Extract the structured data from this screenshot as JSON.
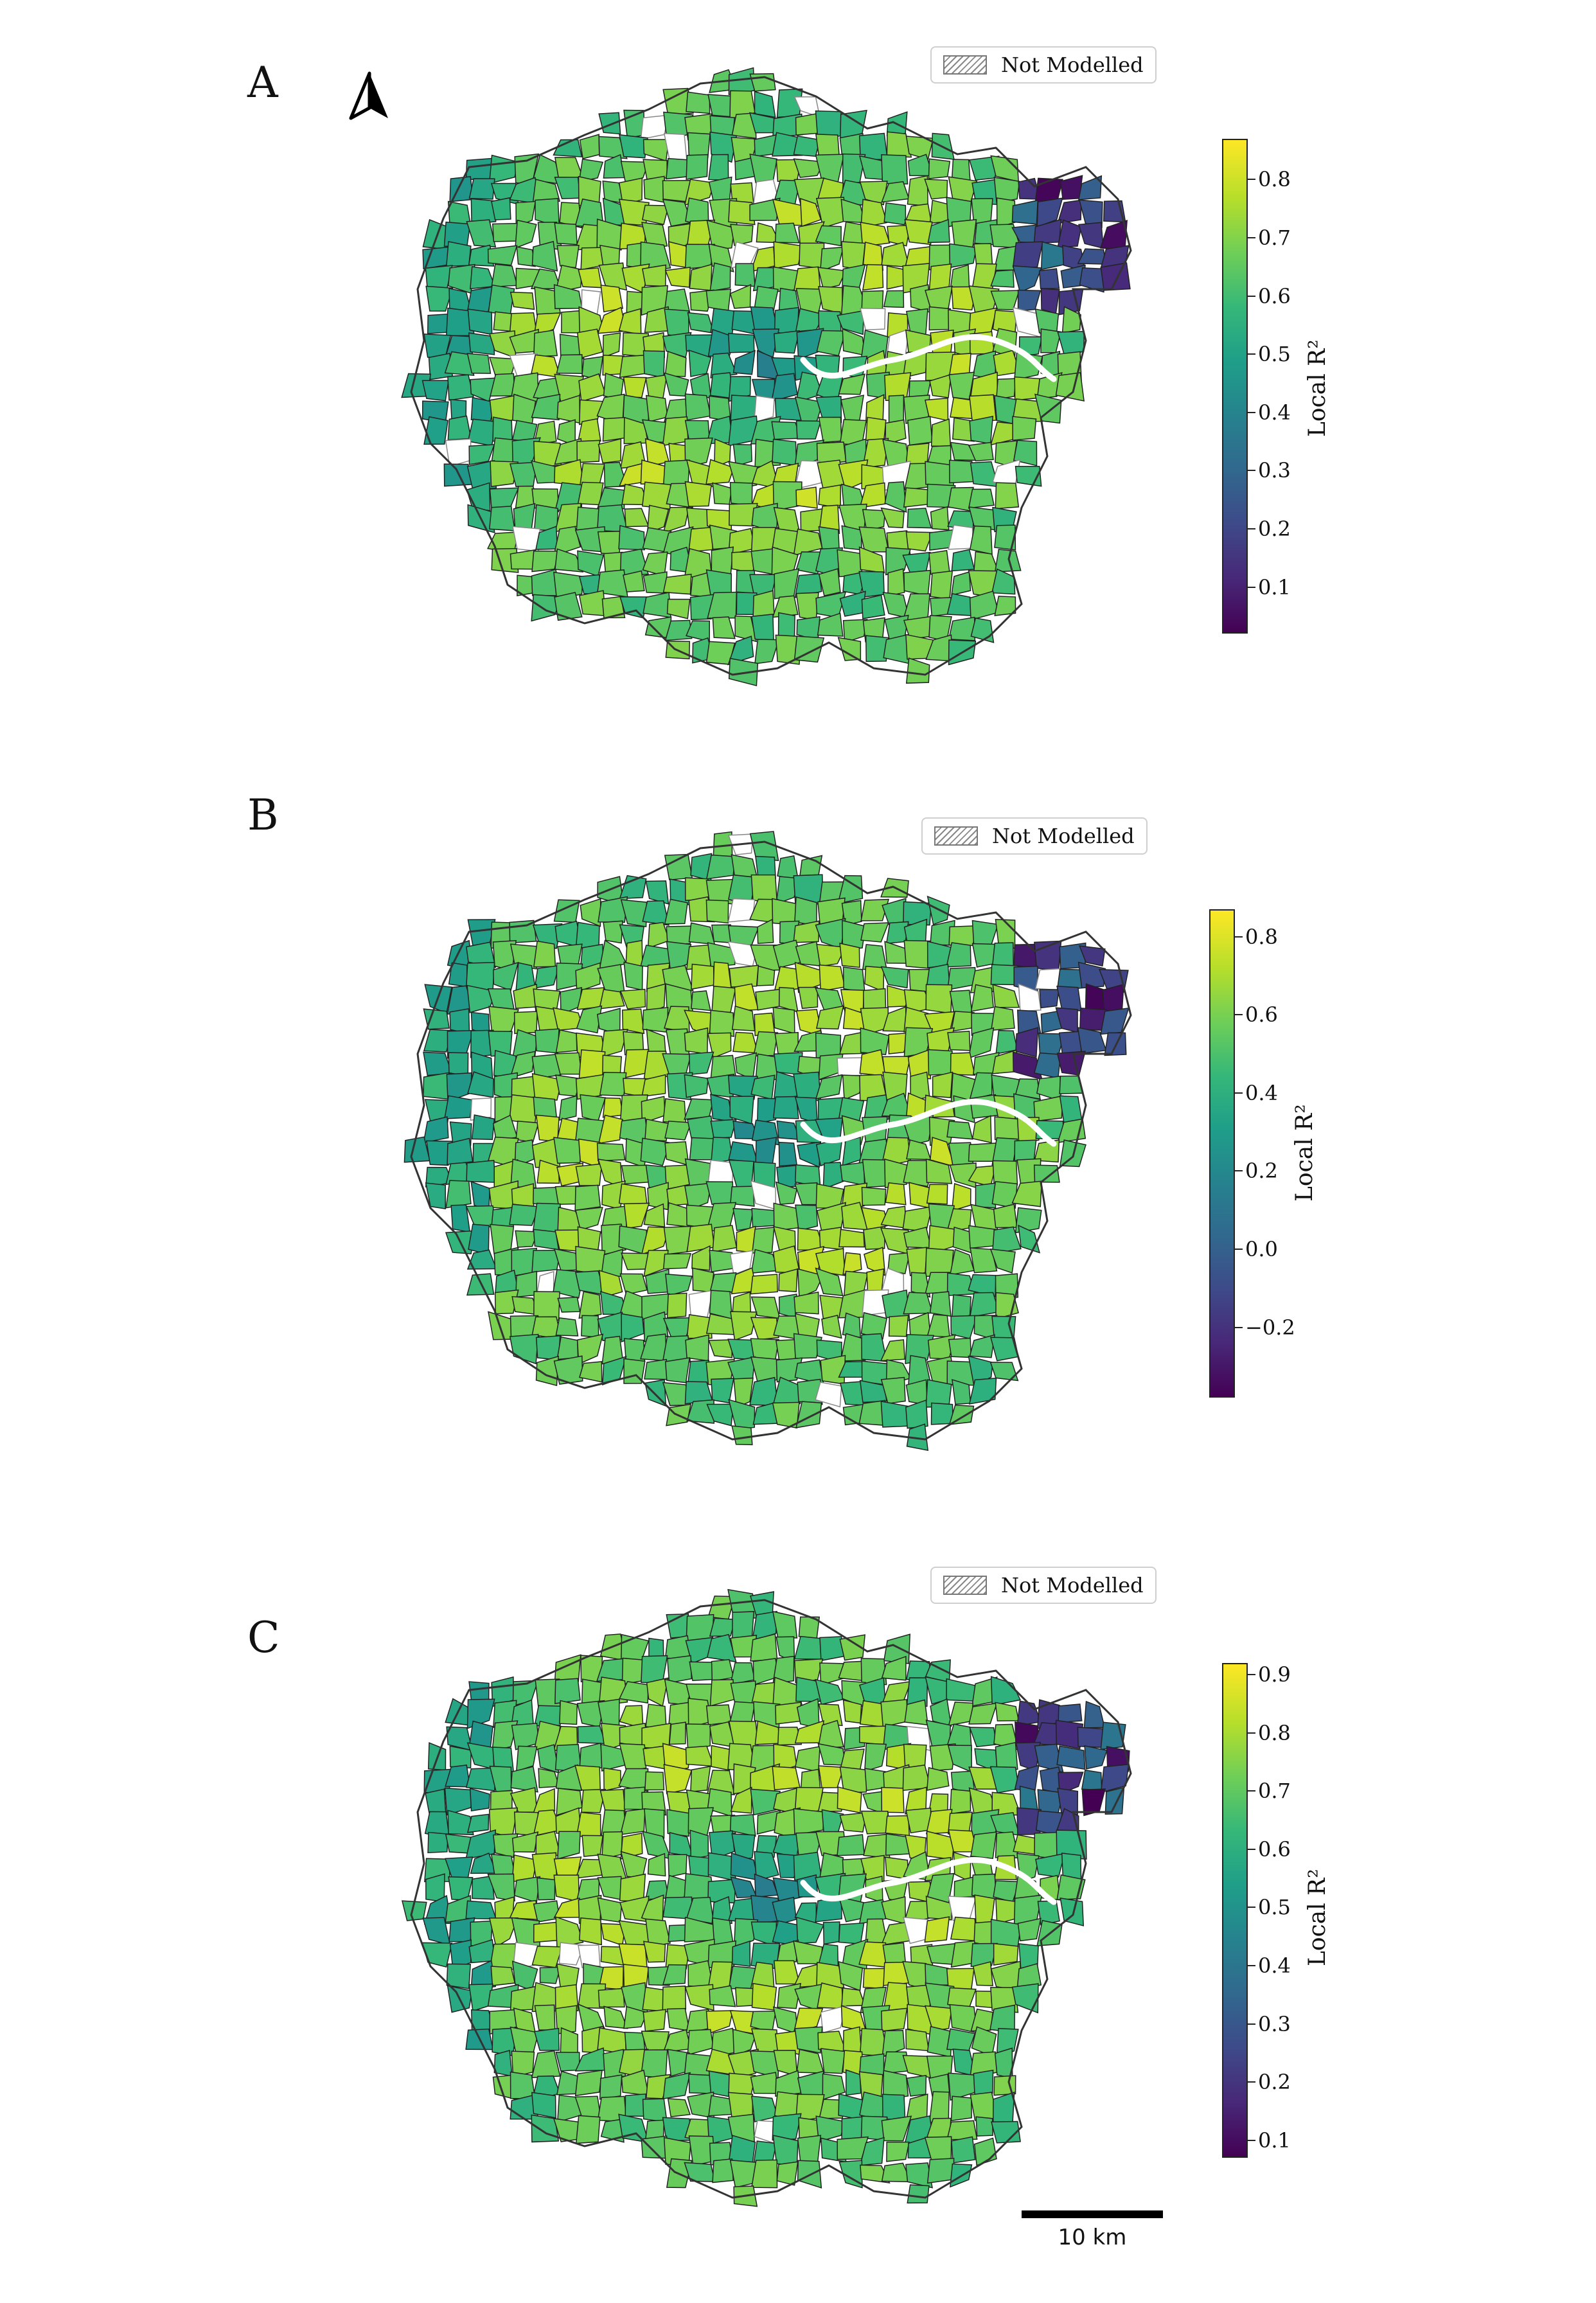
{
  "legend_label": "Not Modelled",
  "north_arrow_icon": "north-arrow-icon",
  "scale_bar_label": "10 km",
  "colormap": "viridis",
  "hatch_color": "#888888",
  "river_color": "#ffffff",
  "panels": [
    {
      "letter": "A",
      "colorbar": {
        "label": "Local R²",
        "min": 0.02,
        "max": 0.87,
        "ticks": [
          "0.1",
          "0.2",
          "0.3",
          "0.4",
          "0.5",
          "0.6",
          "0.7",
          "0.8"
        ],
        "tick_values": [
          0.1,
          0.2,
          0.3,
          0.4,
          0.5,
          0.6,
          0.7,
          0.8
        ]
      }
    },
    {
      "letter": "B",
      "colorbar": {
        "label": "Local R²",
        "min": -0.38,
        "max": 0.87,
        "ticks": [
          "−0.2",
          "0.0",
          "0.2",
          "0.4",
          "0.6",
          "0.8"
        ],
        "tick_values": [
          -0.2,
          0.0,
          0.2,
          0.4,
          0.6,
          0.8
        ]
      }
    },
    {
      "letter": "C",
      "colorbar": {
        "label": "Local R²",
        "min": 0.07,
        "max": 0.92,
        "ticks": [
          "0.1",
          "0.2",
          "0.3",
          "0.4",
          "0.5",
          "0.6",
          "0.7",
          "0.8",
          "0.9"
        ],
        "tick_values": [
          0.1,
          0.2,
          0.3,
          0.4,
          0.5,
          0.6,
          0.7,
          0.8,
          0.9
        ]
      }
    }
  ]
}
